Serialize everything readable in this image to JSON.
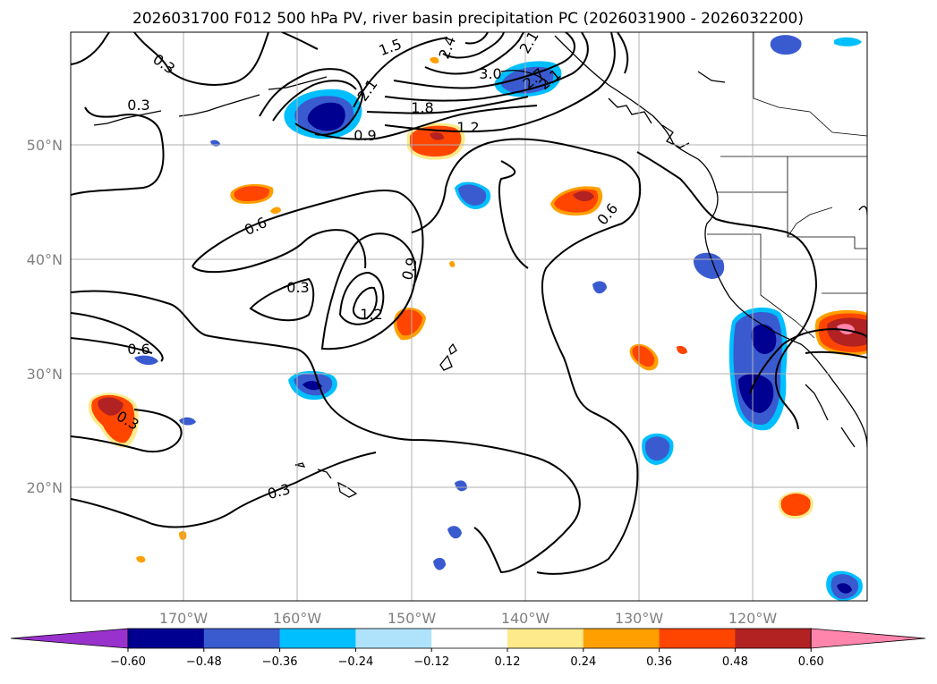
{
  "title": "2026031700 F012 500 hPa PV, river basin precipitation PC (2026031900 - 2026032200)",
  "map": {
    "lat_labels": [
      "50°N",
      "40°N",
      "30°N",
      "20°N"
    ],
    "lon_labels": [
      "170°W",
      "160°W",
      "150°W",
      "140°W",
      "130°W",
      "120°W"
    ]
  },
  "contour_labels": [
    "0.3",
    "0.3",
    "0.3",
    "0.3",
    "0.6",
    "0.6",
    "0.6",
    "0.9",
    "0.9",
    "1.2",
    "1.2",
    "1.5",
    "1.8",
    "2.1",
    "2.1",
    "2.4",
    "2.7",
    "3.0"
  ],
  "colorbar": {
    "ticks": [
      "−0.60",
      "−0.48",
      "−0.36",
      "−0.24",
      "−0.12",
      "0.12",
      "0.24",
      "0.36",
      "0.48",
      "0.60"
    ],
    "colors": [
      "#9932cc",
      "#000090",
      "#3a5bd0",
      "#00bfff",
      "#afe3fb",
      "#ffffff",
      "#fdea8a",
      "#ff9f00",
      "#ff4500",
      "#b22222",
      "#ff85ad"
    ]
  }
}
